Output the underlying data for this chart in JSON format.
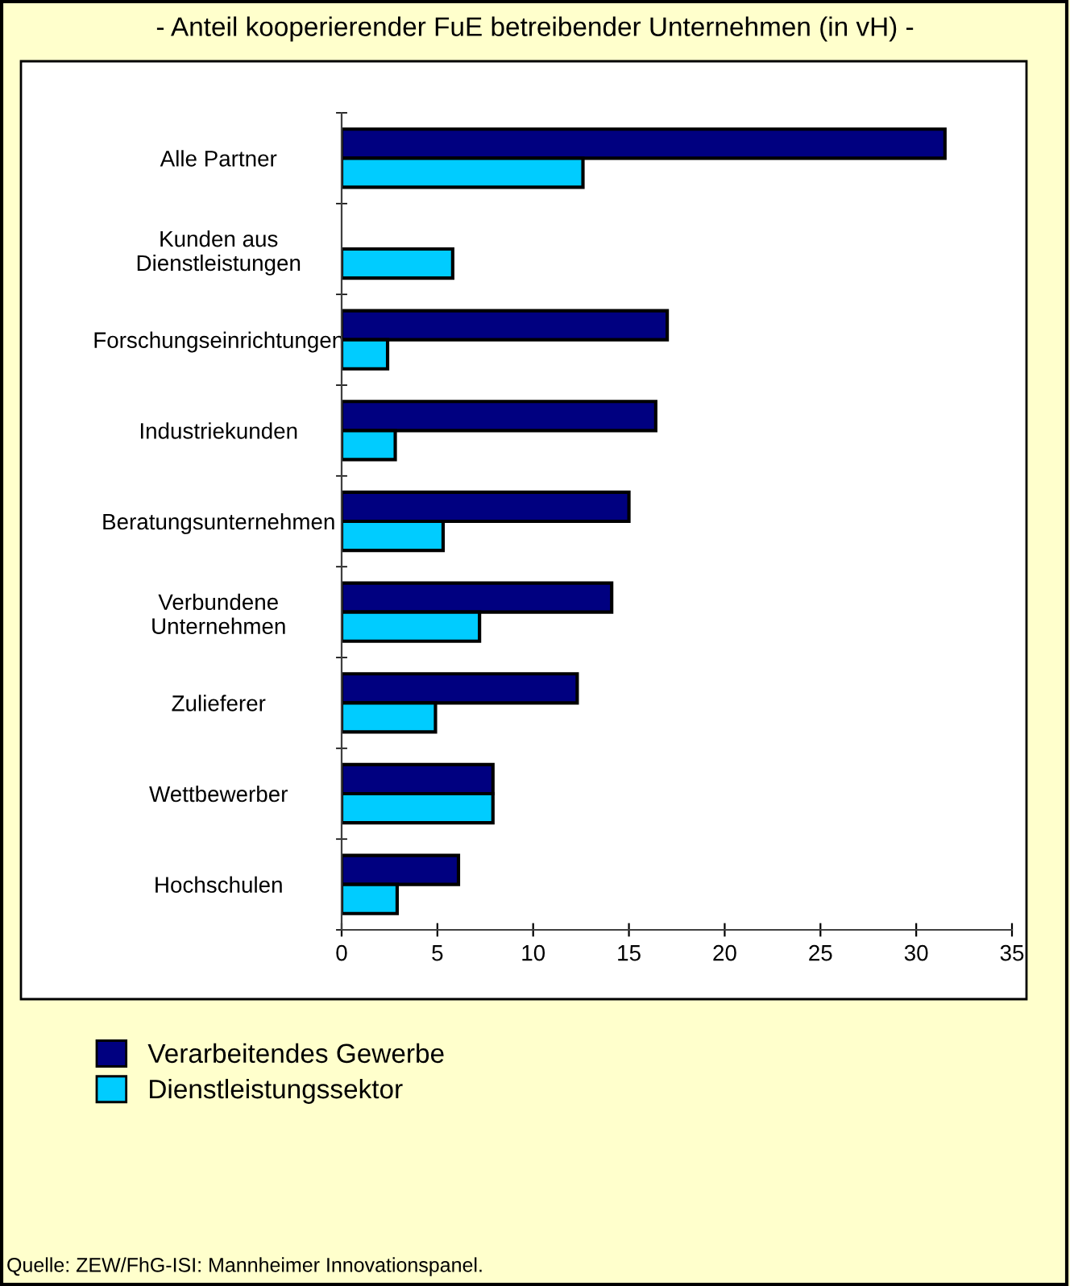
{
  "chart_data": {
    "type": "bar",
    "orientation": "horizontal",
    "title": "- Anteil kooperierender FuE betreibender Unternehmen (in vH) -",
    "categories": [
      "Alle Partner",
      "Kunden aus\nDienstleistungen",
      "Forschungseinrichtungen",
      "Industriekunden",
      "Beratungsunternehmen",
      "Verbundene\nUnternehmen",
      "Zulieferer",
      "Wettbewerber",
      "Hochschulen"
    ],
    "series": [
      {
        "name": "Verarbeitendes Gewerbe",
        "color": "#000080",
        "values": [
          31.5,
          null,
          17.0,
          16.4,
          15.0,
          14.1,
          12.3,
          7.9,
          6.1
        ]
      },
      {
        "name": "Dienstleistungssektor",
        "color": "#00ccff",
        "values": [
          12.6,
          5.8,
          2.4,
          2.8,
          5.3,
          7.2,
          4.9,
          7.9,
          2.9
        ]
      }
    ],
    "xlim": [
      0,
      35
    ],
    "xticks": [
      0,
      5,
      10,
      15,
      20,
      25,
      30,
      35
    ],
    "grid": false,
    "legend": "bottom left",
    "annotations": [
      "Quelle: ZEW/FhG-ISI: Mannheimer Innovationspanel."
    ]
  }
}
